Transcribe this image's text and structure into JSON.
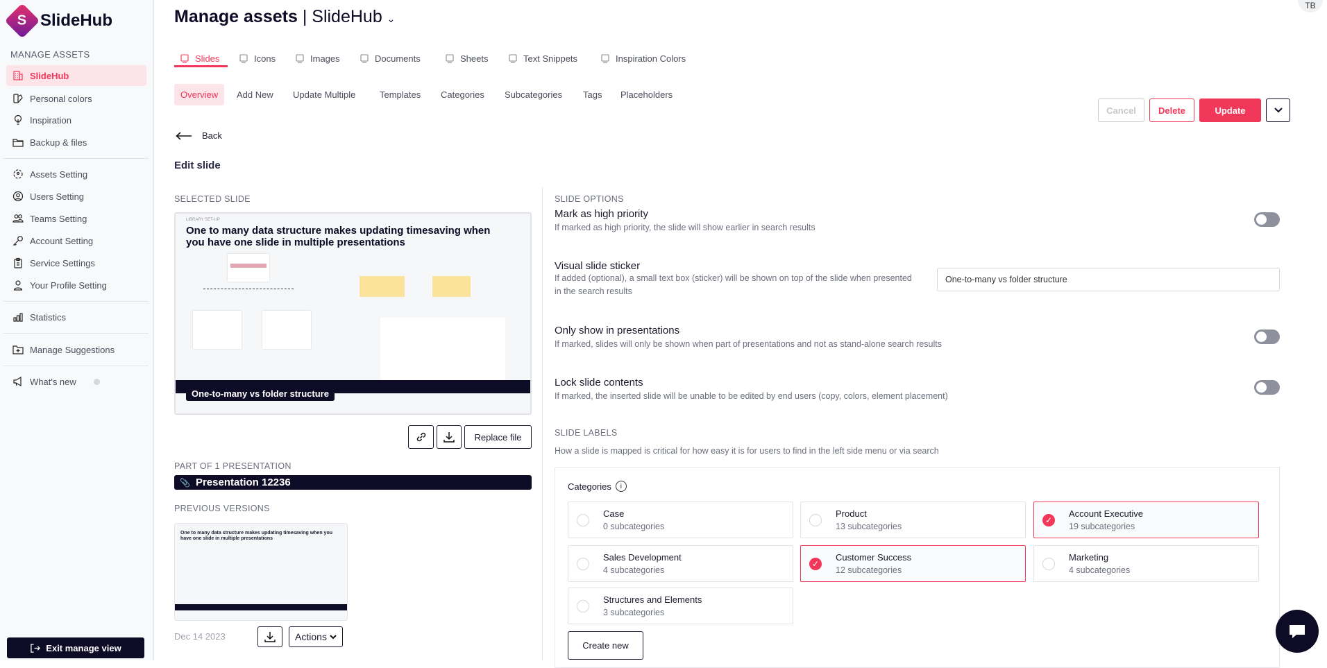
{
  "brand": {
    "name": "SlideHub",
    "logo_letter": "S",
    "accent": "#f2385a",
    "dark": "#0d0b26"
  },
  "sidebar": {
    "section_title": "MANAGE ASSETS",
    "items": [
      {
        "label": "SlideHub",
        "icon": "building-icon",
        "active": true
      },
      {
        "label": "Personal colors",
        "icon": "palette-icon"
      },
      {
        "label": "Inspiration",
        "icon": "lightbulb-icon"
      },
      {
        "label": "Backup & files",
        "icon": "folder-icon"
      },
      {
        "label": "Assets Setting",
        "icon": "assets-icon"
      },
      {
        "label": "Users Setting",
        "icon": "user-circle-icon"
      },
      {
        "label": "Teams Setting",
        "icon": "team-icon"
      },
      {
        "label": "Account Setting",
        "icon": "key-icon"
      },
      {
        "label": "Service Settings",
        "icon": "clipboard-icon"
      },
      {
        "label": "Your Profile Setting",
        "icon": "user-icon"
      },
      {
        "label": "Statistics",
        "icon": "bar-chart-icon"
      },
      {
        "label": "Manage Suggestions",
        "icon": "folder-plus-icon"
      },
      {
        "label": "What's new",
        "icon": "megaphone-icon"
      }
    ],
    "exit_label": "Exit manage view"
  },
  "header": {
    "title": "Manage assets",
    "workspace": "SlideHub",
    "avatar": "TB"
  },
  "tabs": [
    {
      "label": "Slides",
      "active": true
    },
    {
      "label": "Icons"
    },
    {
      "label": "Images"
    },
    {
      "label": "Documents"
    },
    {
      "label": "Sheets"
    },
    {
      "label": "Text Snippets"
    },
    {
      "label": "Inspiration Colors"
    }
  ],
  "subtabs": [
    {
      "label": "Overview",
      "active": true
    },
    {
      "label": "Add New"
    },
    {
      "label": "Update Multiple"
    },
    {
      "label": "Templates"
    },
    {
      "label": "Categories"
    },
    {
      "label": "Subcategories"
    },
    {
      "label": "Tags"
    },
    {
      "label": "Placeholders"
    }
  ],
  "actions": {
    "cancel": "Cancel",
    "delete": "Delete",
    "update": "Update"
  },
  "back": "Back",
  "edit_title": "Edit slide",
  "selected": {
    "label": "SELECTED SLIDE",
    "slide_kicker": "LIBRARY SET-UP",
    "slide_title": "One to many data structure makes updating timesaving when you have one slide in multiple presentations",
    "sticker": "One-to-many vs folder structure",
    "replace": "Replace file"
  },
  "presentations": {
    "label": "PART OF 1 PRESENTATION",
    "name": "Presentation 12236"
  },
  "versions": {
    "label": "PREVIOUS VERSIONS",
    "date": "Dec 14 2023",
    "actions": "Actions"
  },
  "options": {
    "label": "SLIDE OPTIONS",
    "items": [
      {
        "title": "Mark as high priority",
        "desc": "If marked as high priority, the slide will show earlier in search results",
        "on": false
      },
      {
        "title": "Visual slide sticker",
        "desc": "If added (optional), a small text box (sticker) will be shown on top of the slide when presented in the search results",
        "value": "One-to-many vs folder structure"
      },
      {
        "title": "Only show in presentations",
        "desc": "If marked, slides will only be shown when part of presentations and not as stand-alone search results",
        "on": false
      },
      {
        "title": "Lock slide contents",
        "desc": "If marked, the inserted slide will be unable to be edited by end users (copy, colors, element placement)",
        "on": false
      }
    ]
  },
  "labels": {
    "label": "SLIDE LABELS",
    "desc": "How a slide is mapped is critical for how easy it is for users to find in the left side menu or via search",
    "categories_title": "Categories",
    "create": "Create new",
    "categories": [
      {
        "name": "Case",
        "sub": "0 subcategories",
        "selected": false
      },
      {
        "name": "Product",
        "sub": "13 subcategories",
        "selected": false
      },
      {
        "name": "Account Executive",
        "sub": "19 subcategories",
        "selected": true
      },
      {
        "name": "Sales Development",
        "sub": "4 subcategories",
        "selected": false
      },
      {
        "name": "Customer Success",
        "sub": "12 subcategories",
        "selected": true
      },
      {
        "name": "Marketing",
        "sub": "4 subcategories",
        "selected": false
      },
      {
        "name": "Structures and Elements",
        "sub": "3 subcategories",
        "selected": false
      }
    ]
  }
}
